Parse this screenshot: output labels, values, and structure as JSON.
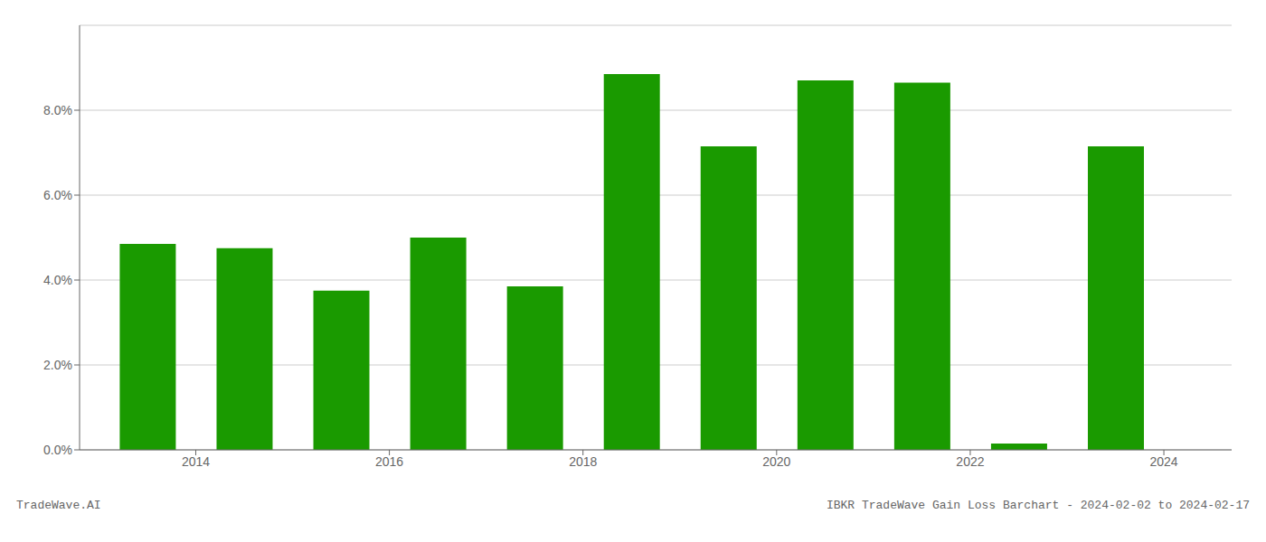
{
  "chart_data": {
    "type": "bar",
    "x": [
      2013,
      2014,
      2015,
      2016,
      2017,
      2018,
      2019,
      2020,
      2021,
      2022,
      2023
    ],
    "values": [
      0.0485,
      0.0475,
      0.0375,
      0.05,
      0.0385,
      0.0885,
      0.0715,
      0.087,
      0.0865,
      0.0015,
      0.0715
    ],
    "color": "#1a9a00",
    "xlim": [
      2012.3,
      2024.2
    ],
    "xticks": [
      {
        "value": 2013.5,
        "label": "2014"
      },
      {
        "value": 2015.5,
        "label": "2016"
      },
      {
        "value": 2017.5,
        "label": "2018"
      },
      {
        "value": 2019.5,
        "label": "2020"
      },
      {
        "value": 2021.5,
        "label": "2022"
      },
      {
        "value": 2023.5,
        "label": "2024"
      }
    ],
    "ylim": [
      0,
      0.1
    ],
    "yticks": [
      {
        "value": 0.0,
        "label": "0.0%"
      },
      {
        "value": 0.02,
        "label": "2.0%"
      },
      {
        "value": 0.04,
        "label": "4.0%"
      },
      {
        "value": 0.06,
        "label": "6.0%"
      },
      {
        "value": 0.08,
        "label": "8.0%"
      }
    ],
    "grid": true,
    "annotations": [
      "TradeWave.AI",
      "IBKR TradeWave Gain Loss Barchart - 2024-02-02 to 2024-02-17"
    ]
  }
}
